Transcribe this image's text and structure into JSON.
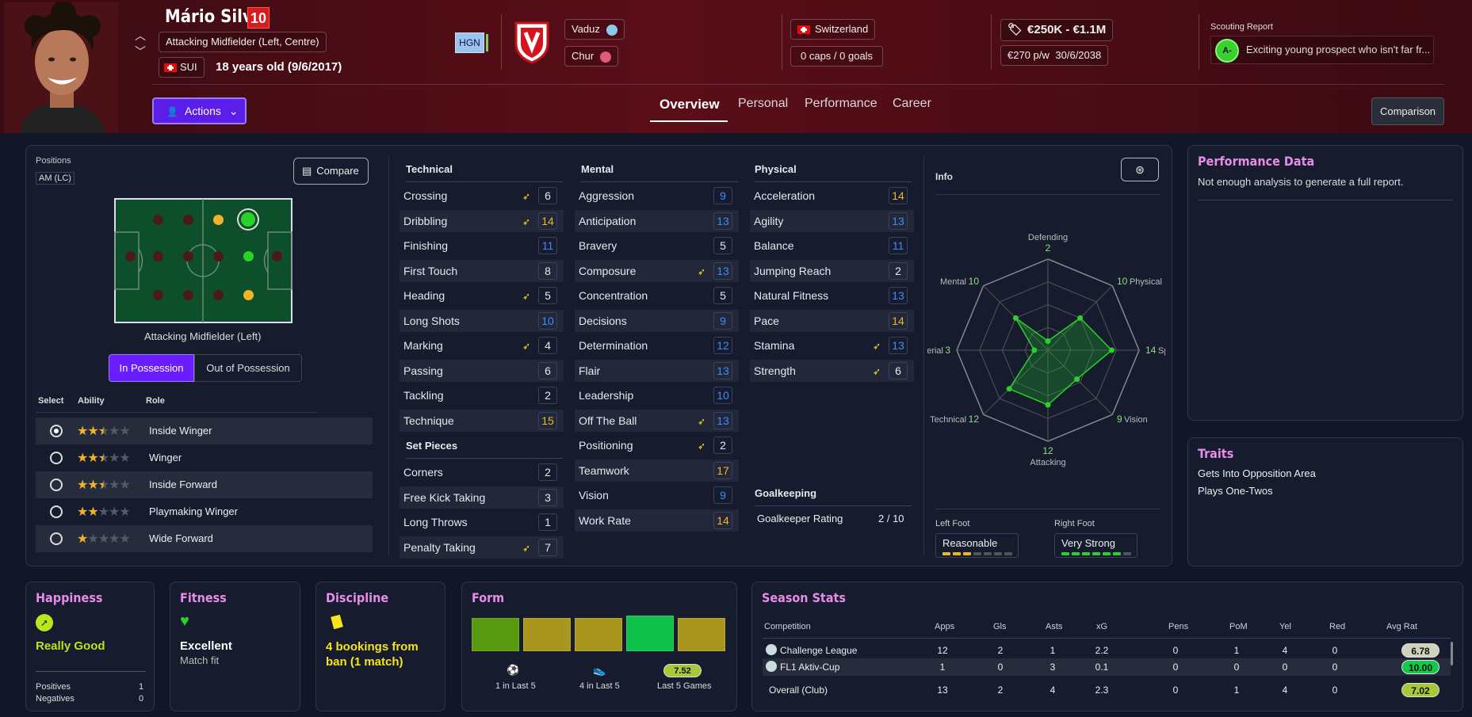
{
  "player": {
    "name": "Mário Silva",
    "number": "10",
    "position": "Attacking Midfielder (Left, Centre)",
    "nationality_code": "SUI",
    "age": "18 years old (9/6/2017)",
    "hgn": "HGN"
  },
  "club": {
    "name": "Vaduz",
    "loan": "Chur"
  },
  "nation": {
    "name": "Switzerland",
    "caps": "0 caps / 0 goals"
  },
  "contract": {
    "value": "€250K - €1.1M",
    "wage": "€270 p/w",
    "expiry": "30/6/2038"
  },
  "scouting": {
    "label": "Scouting Report",
    "grade": "A-",
    "text": "Exciting young prospect who isn't far fr..."
  },
  "nav": {
    "actions": "Actions",
    "tabs": [
      "Overview",
      "Personal",
      "Performance",
      "Career"
    ],
    "comparison": "Comparison"
  },
  "positions": {
    "label": "Positions",
    "code": "AM (LC)",
    "compare": "Compare",
    "selected_name": "Attacking Midfielder (Left)",
    "in_possession": "In Possession",
    "out_possession": "Out of Possession"
  },
  "roles": {
    "headers": [
      "Select",
      "Ability",
      "Role"
    ],
    "items": [
      {
        "name": "Inside Winger",
        "stars": 2.5,
        "selected": true
      },
      {
        "name": "Winger",
        "stars": 2.5,
        "selected": false
      },
      {
        "name": "Inside Forward",
        "stars": 2.5,
        "selected": false
      },
      {
        "name": "Playmaking Winger",
        "stars": 2,
        "selected": false
      },
      {
        "name": "Wide Forward",
        "stars": 1,
        "selected": false
      }
    ]
  },
  "technical": {
    "title": "Technical",
    "items": [
      {
        "name": "Crossing",
        "value": "6",
        "arrow": true
      },
      {
        "name": "Dribbling",
        "value": "14",
        "arrow": true
      },
      {
        "name": "Finishing",
        "value": "11",
        "arrow": false
      },
      {
        "name": "First Touch",
        "value": "8",
        "arrow": false
      },
      {
        "name": "Heading",
        "value": "5",
        "arrow": true
      },
      {
        "name": "Long Shots",
        "value": "10",
        "arrow": false
      },
      {
        "name": "Marking",
        "value": "4",
        "arrow": true
      },
      {
        "name": "Passing",
        "value": "6",
        "arrow": false
      },
      {
        "name": "Tackling",
        "value": "2",
        "arrow": false
      },
      {
        "name": "Technique",
        "value": "15",
        "arrow": false
      }
    ]
  },
  "set_pieces": {
    "title": "Set Pieces",
    "items": [
      {
        "name": "Corners",
        "value": "2",
        "arrow": false
      },
      {
        "name": "Free Kick Taking",
        "value": "3",
        "arrow": false
      },
      {
        "name": "Long Throws",
        "value": "1",
        "arrow": false
      },
      {
        "name": "Penalty Taking",
        "value": "7",
        "arrow": true
      }
    ]
  },
  "mental": {
    "title": "Mental",
    "items": [
      {
        "name": "Aggression",
        "value": "9",
        "arrow": false
      },
      {
        "name": "Anticipation",
        "value": "13",
        "arrow": false
      },
      {
        "name": "Bravery",
        "value": "5",
        "arrow": false
      },
      {
        "name": "Composure",
        "value": "13",
        "arrow": true
      },
      {
        "name": "Concentration",
        "value": "5",
        "arrow": false
      },
      {
        "name": "Decisions",
        "value": "9",
        "arrow": false
      },
      {
        "name": "Determination",
        "value": "12",
        "arrow": false
      },
      {
        "name": "Flair",
        "value": "13",
        "arrow": false
      },
      {
        "name": "Leadership",
        "value": "10",
        "arrow": false
      },
      {
        "name": "Off The Ball",
        "value": "13",
        "arrow": true
      },
      {
        "name": "Positioning",
        "value": "2",
        "arrow": true
      },
      {
        "name": "Teamwork",
        "value": "17",
        "arrow": false
      },
      {
        "name": "Vision",
        "value": "9",
        "arrow": false
      },
      {
        "name": "Work Rate",
        "value": "14",
        "arrow": false
      }
    ]
  },
  "physical": {
    "title": "Physical",
    "items": [
      {
        "name": "Acceleration",
        "value": "14",
        "arrow": false
      },
      {
        "name": "Agility",
        "value": "13",
        "arrow": false
      },
      {
        "name": "Balance",
        "value": "11",
        "arrow": false
      },
      {
        "name": "Jumping Reach",
        "value": "2",
        "arrow": false
      },
      {
        "name": "Natural Fitness",
        "value": "13",
        "arrow": false
      },
      {
        "name": "Pace",
        "value": "14",
        "arrow": false
      },
      {
        "name": "Stamina",
        "value": "13",
        "arrow": true
      },
      {
        "name": "Strength",
        "value": "6",
        "arrow": true
      }
    ]
  },
  "goalkeeping": {
    "title": "Goalkeeping",
    "label": "Goalkeeper Rating",
    "value": "2 / 10"
  },
  "info": {
    "title": "Info",
    "radar": [
      {
        "label": "Defending",
        "value": 2
      },
      {
        "label": "Physical",
        "value": 10
      },
      {
        "label": "Speed",
        "value": 14
      },
      {
        "label": "Vision",
        "value": 9
      },
      {
        "label": "Attacking",
        "value": 12
      },
      {
        "label": "Technical",
        "value": 12
      },
      {
        "label": "Aerial",
        "value": 3
      },
      {
        "label": "Mental",
        "value": 10
      }
    ],
    "left_foot_label": "Left Foot",
    "left_foot": "Reasonable",
    "left_foot_level": 3,
    "right_foot_label": "Right Foot",
    "right_foot": "Very Strong",
    "right_foot_level": 6
  },
  "performance": {
    "title": "Performance Data",
    "text": "Not enough analysis to generate a full report."
  },
  "traits": {
    "title": "Traits",
    "items": [
      "Gets Into Opposition Area",
      "Plays One-Twos"
    ]
  },
  "happiness": {
    "title": "Happiness",
    "status": "Really Good",
    "positives_label": "Positives",
    "positives": "1",
    "negatives_label": "Negatives",
    "negatives": "0"
  },
  "fitness": {
    "title": "Fitness",
    "status": "Excellent",
    "sub": "Match fit"
  },
  "discipline": {
    "title": "Discipline",
    "status": "4 bookings from ban (1 match)"
  },
  "form": {
    "title": "Form",
    "goals": "1 in Last 5",
    "assists": "4 in Last 5",
    "avg": "7.52",
    "avg_label": "Last 5 Games",
    "bars": [
      {
        "color": "#5a9a10",
        "level": 0.83
      },
      {
        "color": "#a8961e",
        "level": 0.83
      },
      {
        "color": "#a8961e",
        "level": 0.83
      },
      {
        "color": "#0fc04a",
        "level": 0.9
      },
      {
        "color": "#a8961e",
        "level": 0.83
      }
    ]
  },
  "season": {
    "title": "Season Stats",
    "headers": [
      "Competition",
      "Apps",
      "Gls",
      "Asts",
      "xG",
      "Pens",
      "PoM",
      "Yel",
      "Red",
      "Avg Rat"
    ],
    "rows": [
      {
        "comp": "Challenge League",
        "apps": "12",
        "gls": "2",
        "asts": "1",
        "xg": "2.2",
        "pens": "0",
        "pom": "1",
        "yel": "4",
        "red": "0",
        "avg": "6.78",
        "color": "#cfd3bb"
      },
      {
        "comp": "FL1 Aktiv-Cup",
        "apps": "1",
        "gls": "0",
        "asts": "3",
        "xg": "0.1",
        "pens": "0",
        "pom": "0",
        "yel": "0",
        "red": "0",
        "avg": "10.00",
        "color": "#14c84a"
      },
      {
        "comp": "Overall (Club)",
        "apps": "13",
        "gls": "2",
        "asts": "4",
        "xg": "2.3",
        "pens": "0",
        "pom": "1",
        "yel": "4",
        "red": "0",
        "avg": "7.02",
        "color": "#a8c83a"
      }
    ]
  },
  "colors": {
    "accent": "#6a1eff",
    "green": "#2ad12a",
    "yellow": "#f0b428",
    "blue": "#3a8cff"
  }
}
